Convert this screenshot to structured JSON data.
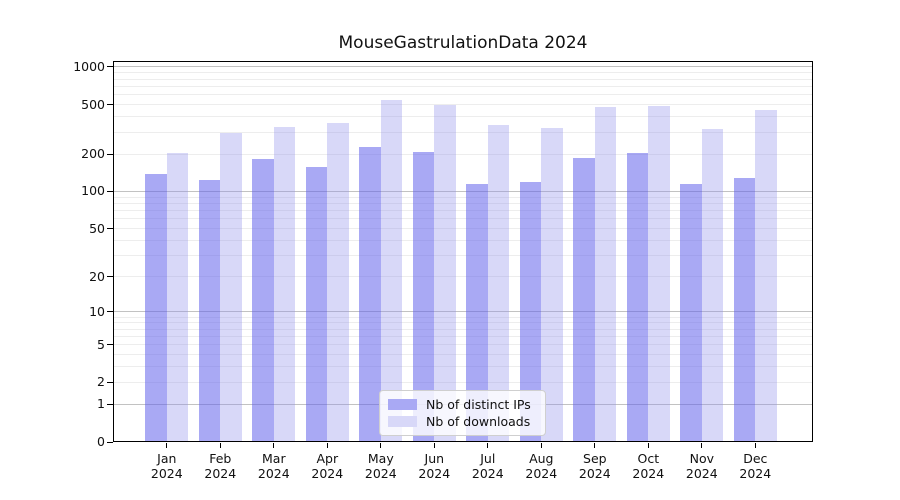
{
  "figure": {
    "title": "MouseGastrulationData 2024"
  },
  "chart_data": {
    "type": "bar",
    "title": "MouseGastrulationData 2024",
    "categories": [
      "Jan 2024",
      "Feb 2024",
      "Mar 2024",
      "Apr 2024",
      "May 2024",
      "Jun 2024",
      "Jul 2024",
      "Aug 2024",
      "Sep 2024",
      "Oct 2024",
      "Nov 2024",
      "Dec 2024"
    ],
    "series": [
      {
        "name": "Nb of distinct IPs",
        "swatch": "#a9a9f4",
        "fill": "rgba(99,99,235,0.55)",
        "values": [
          139,
          123,
          183,
          157,
          230,
          208,
          114,
          120,
          185,
          206,
          114,
          128
        ]
      },
      {
        "name": "Nb of downloads",
        "swatch": "#d8d8f8",
        "fill": "rgba(144,144,235,0.35)",
        "values": [
          206,
          298,
          329,
          354,
          545,
          499,
          345,
          322,
          481,
          487,
          317,
          450
        ]
      }
    ],
    "y_axis": {
      "scale": "log10(value+1)",
      "ticks": [
        0,
        1,
        2,
        5,
        10,
        20,
        50,
        100,
        200,
        500,
        1000
      ],
      "ylim": [
        0,
        1140
      ],
      "grid": true,
      "minor_gridlines": [
        2,
        3,
        4,
        5,
        6,
        7,
        8,
        9,
        20,
        30,
        40,
        50,
        60,
        70,
        80,
        90,
        200,
        300,
        400,
        500,
        600,
        700,
        800,
        900
      ],
      "major_gridlines": [
        1,
        10,
        100,
        1000
      ]
    },
    "legend": {
      "position": "lower center"
    },
    "colors": {
      "grid_major": "#c2c2c2",
      "grid_minor": "#ededed",
      "spine": "#000000",
      "background": "#ffffff"
    }
  }
}
